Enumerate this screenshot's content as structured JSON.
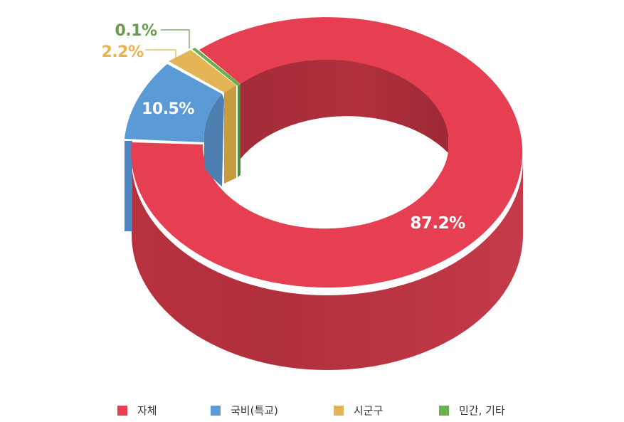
{
  "chart_data": {
    "type": "pie",
    "style": "3d-donut",
    "categories": [
      "자체",
      "국비(특교)",
      "시군구",
      "민간, 기타"
    ],
    "values": [
      87.2,
      10.5,
      2.2,
      0.1
    ],
    "labels": [
      "87.2%",
      "10.5%",
      "2.2%",
      "0.1%"
    ],
    "colors": [
      "#e63f52",
      "#5b9bd5",
      "#e3b555",
      "#6ab04c"
    ],
    "legend_position": "bottom",
    "title": ""
  }
}
